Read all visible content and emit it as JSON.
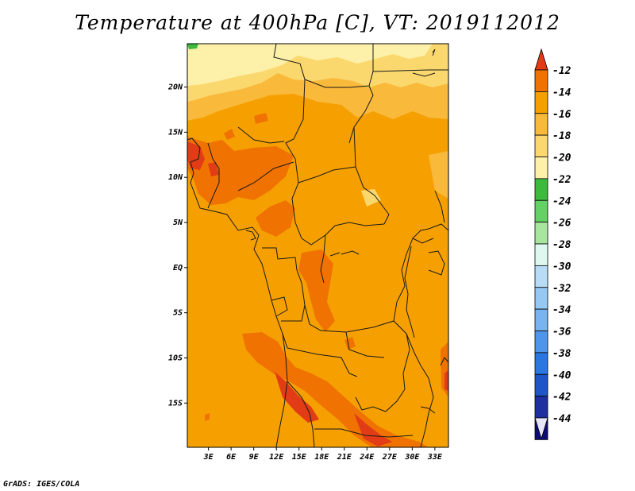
{
  "title": "Temperature at 400hPa [C], VT: 2019112012",
  "credit": "GrADS: IGES/COLA",
  "map": {
    "lat_labels": [
      "20N",
      "15N",
      "10N",
      "5N",
      "EQ",
      "5S",
      "10S",
      "15S"
    ],
    "lat_values": [
      20,
      15,
      10,
      5,
      0,
      -5,
      -10,
      -15
    ],
    "lon_labels": [
      "3E",
      "6E",
      "9E",
      "12E",
      "15E",
      "18E",
      "21E",
      "24E",
      "27E",
      "30E",
      "33E"
    ],
    "lon_values": [
      3,
      6,
      9,
      12,
      15,
      18,
      21,
      24,
      27,
      30,
      33
    ],
    "lon_range": [
      0.2,
      34.8
    ],
    "lat_range": [
      -19.9,
      24.8
    ]
  },
  "colorbar": {
    "labels": [
      "-12",
      "-14",
      "-16",
      "-18",
      "-20",
      "-22",
      "-24",
      "-26",
      "-28",
      "-30",
      "-32",
      "-34",
      "-36",
      "-38",
      "-40",
      "-42",
      "-44"
    ],
    "colors": [
      "#e13c16",
      "#f07200",
      "#f5a000",
      "#f9b93b",
      "#fbd86e",
      "#fdf0a8",
      "#3cba3c",
      "#63d163",
      "#a8e6a0",
      "#dff8ef",
      "#b9dcf6",
      "#96c8f4",
      "#78b4f0",
      "#4d96eb",
      "#2a77e1",
      "#1e56c8",
      "#1e2fa0",
      "#0c0c78",
      "#e6e6f6"
    ]
  }
}
